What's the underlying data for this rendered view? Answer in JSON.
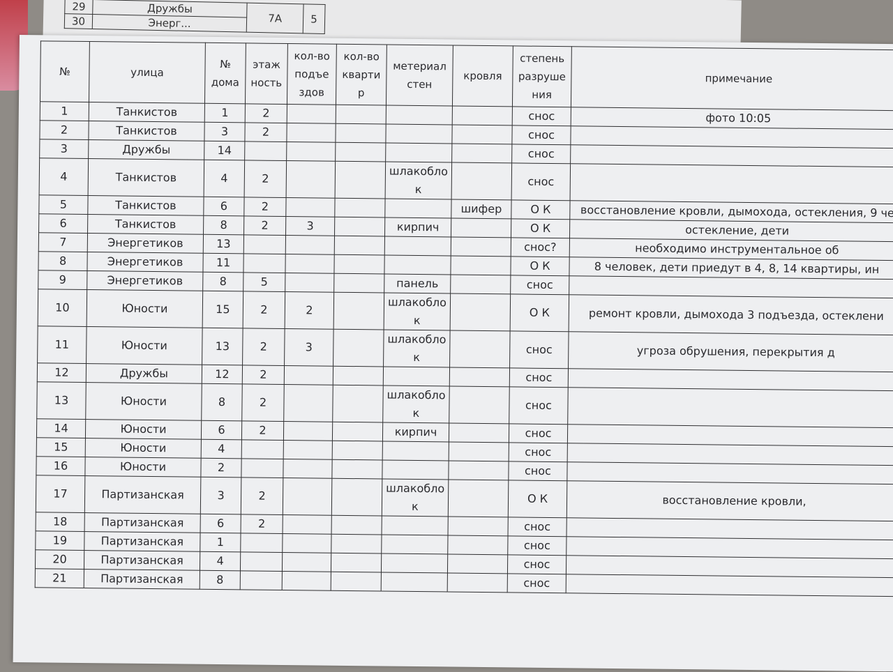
{
  "back_page": {
    "rows": [
      {
        "num": "29",
        "street": "Дружбы",
        "house": "7А",
        "floors": "5"
      },
      {
        "num": "30",
        "street": "Энерг..."
      }
    ]
  },
  "table": {
    "headers": [
      "№",
      "улица",
      "№ дома",
      "этаж ность",
      "кол-во подъе здов",
      "кол-во кварти р",
      "метериал стен",
      "кровля",
      "степень разруше ния",
      "примечание"
    ],
    "rows": [
      {
        "num": "1",
        "street": "Танкистов",
        "house": "1",
        "floors": "2",
        "entrances": "",
        "apartments": "",
        "material": "",
        "roof": "",
        "status": "снос",
        "note": "фото 10:05"
      },
      {
        "num": "2",
        "street": "Танкистов",
        "house": "3",
        "floors": "2",
        "entrances": "",
        "apartments": "",
        "material": "",
        "roof": "",
        "status": "снос",
        "note": ""
      },
      {
        "num": "3",
        "street": "Дружбы",
        "house": "14",
        "floors": "",
        "entrances": "",
        "apartments": "",
        "material": "",
        "roof": "",
        "status": "снос",
        "note": ""
      },
      {
        "num": "4",
        "street": "Танкистов",
        "house": "4",
        "floors": "2",
        "entrances": "",
        "apartments": "",
        "material": "шлакоблок",
        "roof": "",
        "status": "снос",
        "note": ""
      },
      {
        "num": "5",
        "street": "Танкистов",
        "house": "6",
        "floors": "2",
        "entrances": "",
        "apartments": "",
        "material": "",
        "roof": "шифер",
        "status": "О К",
        "note": "восстановление кровли, дымохода, остекления, 9 че"
      },
      {
        "num": "6",
        "street": "Танкистов",
        "house": "8",
        "floors": "2",
        "entrances": "3",
        "apartments": "",
        "material": "кирпич",
        "roof": "",
        "status": "О К",
        "note": "остекление, дети"
      },
      {
        "num": "7",
        "street": "Энергетиков",
        "house": "13",
        "floors": "",
        "entrances": "",
        "apartments": "",
        "material": "",
        "roof": "",
        "status": "снос?",
        "note": "необходимо инструментальное об"
      },
      {
        "num": "8",
        "street": "Энергетиков",
        "house": "11",
        "floors": "",
        "entrances": "",
        "apartments": "",
        "material": "",
        "roof": "",
        "status": "О К",
        "note": "8 человек, дети приедут в 4, 8, 14 квартиры, ин"
      },
      {
        "num": "9",
        "street": "Энергетиков",
        "house": "8",
        "floors": "5",
        "entrances": "",
        "apartments": "",
        "material": "панель",
        "roof": "",
        "status": "снос",
        "note": ""
      },
      {
        "num": "10",
        "street": "Юности",
        "house": "15",
        "floors": "2",
        "entrances": "2",
        "apartments": "",
        "material": "шлакоблок",
        "roof": "",
        "status": "О К",
        "note": "ремонт кровли, дымохода 3 подъезда, остеклени"
      },
      {
        "num": "11",
        "street": "Юности",
        "house": "13",
        "floors": "2",
        "entrances": "3",
        "apartments": "",
        "material": "шлакоблок",
        "roof": "",
        "status": "снос",
        "note": "угроза обрушения, перекрытия д"
      },
      {
        "num": "12",
        "street": "Дружбы",
        "house": "12",
        "floors": "2",
        "entrances": "",
        "apartments": "",
        "material": "",
        "roof": "",
        "status": "снос",
        "note": ""
      },
      {
        "num": "13",
        "street": "Юности",
        "house": "8",
        "floors": "2",
        "entrances": "",
        "apartments": "",
        "material": "шлакоблок",
        "roof": "",
        "status": "снос",
        "note": ""
      },
      {
        "num": "14",
        "street": "Юности",
        "house": "6",
        "floors": "2",
        "entrances": "",
        "apartments": "",
        "material": "кирпич",
        "roof": "",
        "status": "снос",
        "note": ""
      },
      {
        "num": "15",
        "street": "Юности",
        "house": "4",
        "floors": "",
        "entrances": "",
        "apartments": "",
        "material": "",
        "roof": "",
        "status": "снос",
        "note": ""
      },
      {
        "num": "16",
        "street": "Юности",
        "house": "2",
        "floors": "",
        "entrances": "",
        "apartments": "",
        "material": "",
        "roof": "",
        "status": "снос",
        "note": ""
      },
      {
        "num": "17",
        "street": "Партизанская",
        "house": "3",
        "floors": "2",
        "entrances": "",
        "apartments": "",
        "material": "шлакоблок",
        "roof": "",
        "status": "О К",
        "note": "восстановление кровли,"
      },
      {
        "num": "18",
        "street": "Партизанская",
        "house": "6",
        "floors": "2",
        "entrances": "",
        "apartments": "",
        "material": "",
        "roof": "",
        "status": "снос",
        "note": ""
      },
      {
        "num": "19",
        "street": "Партизанская",
        "house": "1",
        "floors": "",
        "entrances": "",
        "apartments": "",
        "material": "",
        "roof": "",
        "status": "снос",
        "note": ""
      },
      {
        "num": "20",
        "street": "Партизанская",
        "house": "4",
        "floors": "",
        "entrances": "",
        "apartments": "",
        "material": "",
        "roof": "",
        "status": "снос",
        "note": ""
      },
      {
        "num": "21",
        "street": "Партизанская",
        "house": "8",
        "floors": "",
        "entrances": "",
        "apartments": "",
        "material": "",
        "roof": "",
        "status": "снос",
        "note": ""
      }
    ]
  }
}
